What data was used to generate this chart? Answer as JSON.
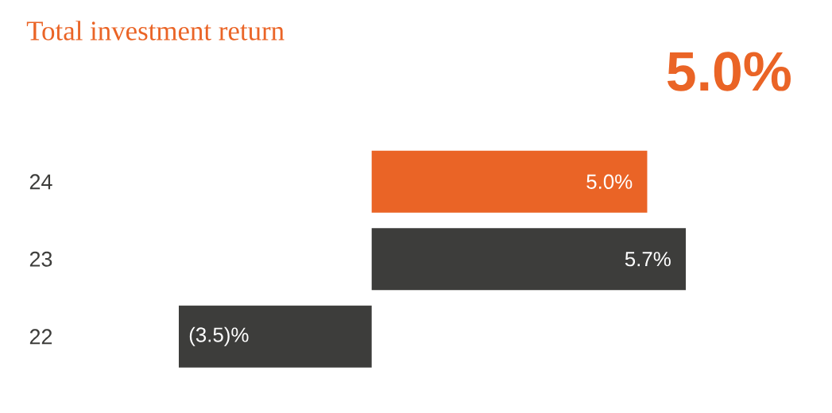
{
  "chart_data": {
    "type": "bar",
    "orientation": "horizontal",
    "title": "Total investment return",
    "annotations": [
      "5.0%"
    ],
    "categories": [
      "24",
      "23",
      "22"
    ],
    "values": [
      5.0,
      5.7,
      -3.5
    ],
    "colors": [
      "#ea6426",
      "#3d3d3b",
      "#3d3d3b"
    ],
    "value_labels": [
      "5.0%",
      "5.7%",
      "(3.5)%"
    ]
  }
}
